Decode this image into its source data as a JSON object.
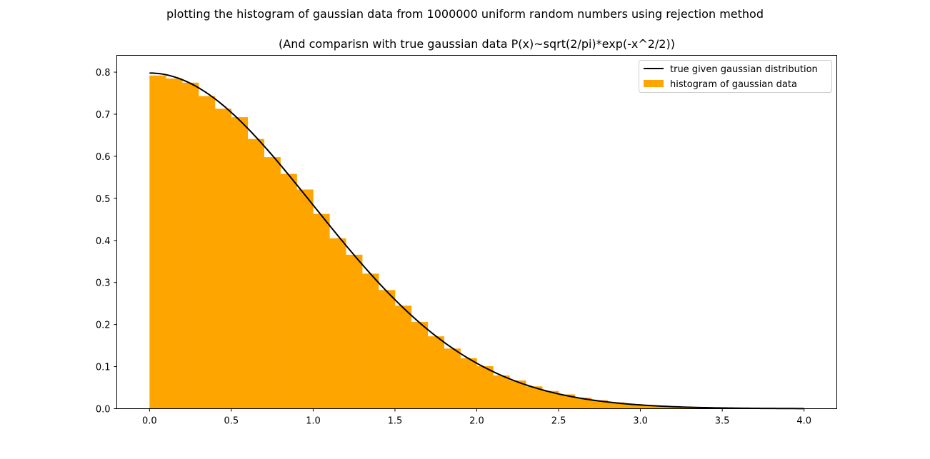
{
  "chart_data": {
    "type": "bar",
    "title": "plotting the histogram of gaussian data from 1000000 uniform random numbers using rejection method",
    "subtitle": "(And comparisn with true gaussian data P(x)~sqrt(2/pi)*exp(-x^2/2))",
    "xlabel": "",
    "ylabel": "",
    "xlim": [
      -0.2,
      4.2
    ],
    "ylim": [
      0,
      0.84
    ],
    "xticks": [
      "0.0",
      "0.5",
      "1.0",
      "1.5",
      "2.0",
      "2.5",
      "3.0",
      "3.5",
      "4.0"
    ],
    "yticks": [
      "0.0",
      "0.1",
      "0.2",
      "0.3",
      "0.4",
      "0.5",
      "0.6",
      "0.7",
      "0.8"
    ],
    "grid": false,
    "legend_position": "top-right",
    "histogram": {
      "name": "histogram of gaussian data",
      "color": "#ffa500",
      "bin_edges": [
        0.0,
        0.1,
        0.2,
        0.3,
        0.4,
        0.5,
        0.6,
        0.7,
        0.8,
        0.9,
        1.0,
        1.1,
        1.2,
        1.3,
        1.4,
        1.5,
        1.6,
        1.7,
        1.8,
        1.9,
        2.0,
        2.1,
        2.2,
        2.3,
        2.4,
        2.5,
        2.6,
        2.7,
        2.8,
        2.9,
        3.0,
        3.1,
        3.2,
        3.3,
        3.4,
        3.5,
        3.6,
        3.7,
        3.8,
        3.9,
        4.0
      ],
      "values": [
        0.792,
        0.785,
        0.775,
        0.743,
        0.713,
        0.693,
        0.641,
        0.598,
        0.558,
        0.521,
        0.463,
        0.405,
        0.366,
        0.321,
        0.282,
        0.245,
        0.206,
        0.172,
        0.143,
        0.12,
        0.101,
        0.079,
        0.067,
        0.053,
        0.042,
        0.034,
        0.026,
        0.02,
        0.015,
        0.011,
        0.008,
        0.006,
        0.004,
        0.003,
        0.002,
        0.0015,
        0.001,
        0.0007,
        0.0005,
        0.0003
      ]
    },
    "line": {
      "name": "true given gaussian distribution",
      "color": "#000000",
      "function": "sqrt(2/pi)*exp(-x^2/2)",
      "x_range": [
        0.0,
        4.0
      ]
    }
  }
}
